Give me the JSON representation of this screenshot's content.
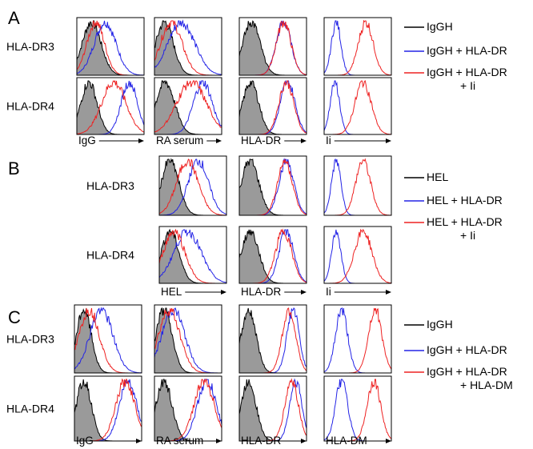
{
  "figure": {
    "colors": {
      "fill": "#9a9a9a",
      "outline": "#000000",
      "blue": "#2323e6",
      "red": "#ee2222"
    },
    "panels": [
      {
        "letter": "A",
        "rows": [
          "HLA-DR3",
          "HLA-DR4"
        ],
        "columns": [
          "IgG",
          "RA serum",
          "HLA-DR",
          "Ii"
        ],
        "legend": [
          {
            "lines": [
              "IgGH"
            ],
            "color": "#000000"
          },
          {
            "lines": [
              "IgGH + HLA-DR"
            ],
            "color": "#2323e6"
          },
          {
            "lines": [
              "IgGH + HLA-DR",
              "+ Ii"
            ],
            "color": "#ee2222"
          }
        ],
        "histograms": [
          [
            {
              "gray": [
                0.22,
                0.14
              ],
              "blue": [
                0.42,
                0.16
              ],
              "red": [
                0.28,
                0.13
              ]
            },
            {
              "gray": [
                0.15,
                0.13
              ],
              "blue": [
                0.4,
                0.2
              ],
              "red": [
                0.25,
                0.16
              ]
            },
            {
              "gray": [
                0.18,
                0.13
              ],
              "blue": [
                0.66,
                0.11
              ],
              "red": [
                0.66,
                0.11
              ]
            },
            {
              "gray": null,
              "blue": [
                0.18,
                0.07
              ],
              "red": [
                0.62,
                0.11
              ]
            }
          ],
          [
            {
              "gray": [
                0.18,
                0.12
              ],
              "blue": [
                0.78,
                0.12
              ],
              "red": [
                0.55,
                0.18
              ]
            },
            {
              "gray": [
                0.16,
                0.14
              ],
              "blue": [
                0.72,
                0.14
              ],
              "red": [
                0.55,
                0.22
              ]
            },
            {
              "gray": [
                0.17,
                0.12
              ],
              "blue": [
                0.72,
                0.11
              ],
              "red": [
                0.7,
                0.11
              ]
            },
            {
              "gray": null,
              "blue": [
                0.16,
                0.07
              ],
              "red": [
                0.58,
                0.12
              ]
            }
          ]
        ]
      },
      {
        "letter": "B",
        "rows": [
          "HLA-DR3",
          "HLA-DR4"
        ],
        "columns": [
          "HEL",
          "HLA-DR",
          "Ii"
        ],
        "legend": [
          {
            "lines": [
              "HEL"
            ],
            "color": "#000000"
          },
          {
            "lines": [
              "HEL + HLA-DR"
            ],
            "color": "#2323e6"
          },
          {
            "lines": [
              "HEL + HLA-DR",
              "+ Ii"
            ],
            "color": "#ee2222"
          }
        ],
        "histograms": [
          [
            {
              "gray": [
                0.16,
                0.13
              ],
              "blue": [
                0.58,
                0.15
              ],
              "red": [
                0.42,
                0.16
              ]
            },
            {
              "gray": [
                0.16,
                0.13
              ],
              "blue": [
                0.7,
                0.11
              ],
              "red": [
                0.68,
                0.11
              ]
            },
            {
              "gray": null,
              "blue": [
                0.18,
                0.07
              ],
              "red": [
                0.58,
                0.11
              ]
            }
          ],
          [
            {
              "gray": [
                0.16,
                0.13
              ],
              "blue": [
                0.42,
                0.2
              ],
              "red": [
                0.22,
                0.16
              ]
            },
            {
              "gray": [
                0.16,
                0.13
              ],
              "blue": [
                0.7,
                0.11
              ],
              "red": [
                0.66,
                0.12
              ]
            },
            {
              "gray": null,
              "blue": [
                0.18,
                0.07
              ],
              "red": [
                0.58,
                0.13
              ]
            }
          ]
        ]
      },
      {
        "letter": "C",
        "rows": [
          "HLA-DR3",
          "HLA-DR4"
        ],
        "columns": [
          "IgG",
          "RA serum",
          "HLA-DR",
          "HLA-DM"
        ],
        "legend": [
          {
            "lines": [
              "IgGH"
            ],
            "color": "#000000"
          },
          {
            "lines": [
              "IgGH + HLA-DR"
            ],
            "color": "#2323e6"
          },
          {
            "lines": [
              "IgGH + HLA-DR",
              "+ HLA-DM"
            ],
            "color": "#ee2222"
          }
        ],
        "histograms": [
          [
            {
              "gray": [
                0.14,
                0.11
              ],
              "blue": [
                0.4,
                0.17
              ],
              "red": [
                0.22,
                0.15
              ]
            },
            {
              "gray": [
                0.14,
                0.12
              ],
              "blue": [
                0.28,
                0.17
              ],
              "red": [
                0.22,
                0.16
              ]
            },
            {
              "gray": [
                0.14,
                0.11
              ],
              "blue": [
                0.8,
                0.09
              ],
              "red": [
                0.74,
                0.1
              ]
            },
            {
              "gray": null,
              "blue": [
                0.26,
                0.09
              ],
              "red": [
                0.76,
                0.1
              ]
            }
          ],
          [
            {
              "gray": [
                0.14,
                0.11
              ],
              "blue": [
                0.8,
                0.13
              ],
              "red": [
                0.76,
                0.14
              ]
            },
            {
              "gray": [
                0.14,
                0.12
              ],
              "blue": [
                0.78,
                0.14
              ],
              "red": [
                0.74,
                0.15
              ]
            },
            {
              "gray": [
                0.14,
                0.11
              ],
              "blue": [
                0.84,
                0.09
              ],
              "red": [
                0.78,
                0.1
              ]
            },
            {
              "gray": null,
              "blue": [
                0.26,
                0.09
              ],
              "red": [
                0.74,
                0.1
              ]
            }
          ]
        ]
      }
    ]
  }
}
